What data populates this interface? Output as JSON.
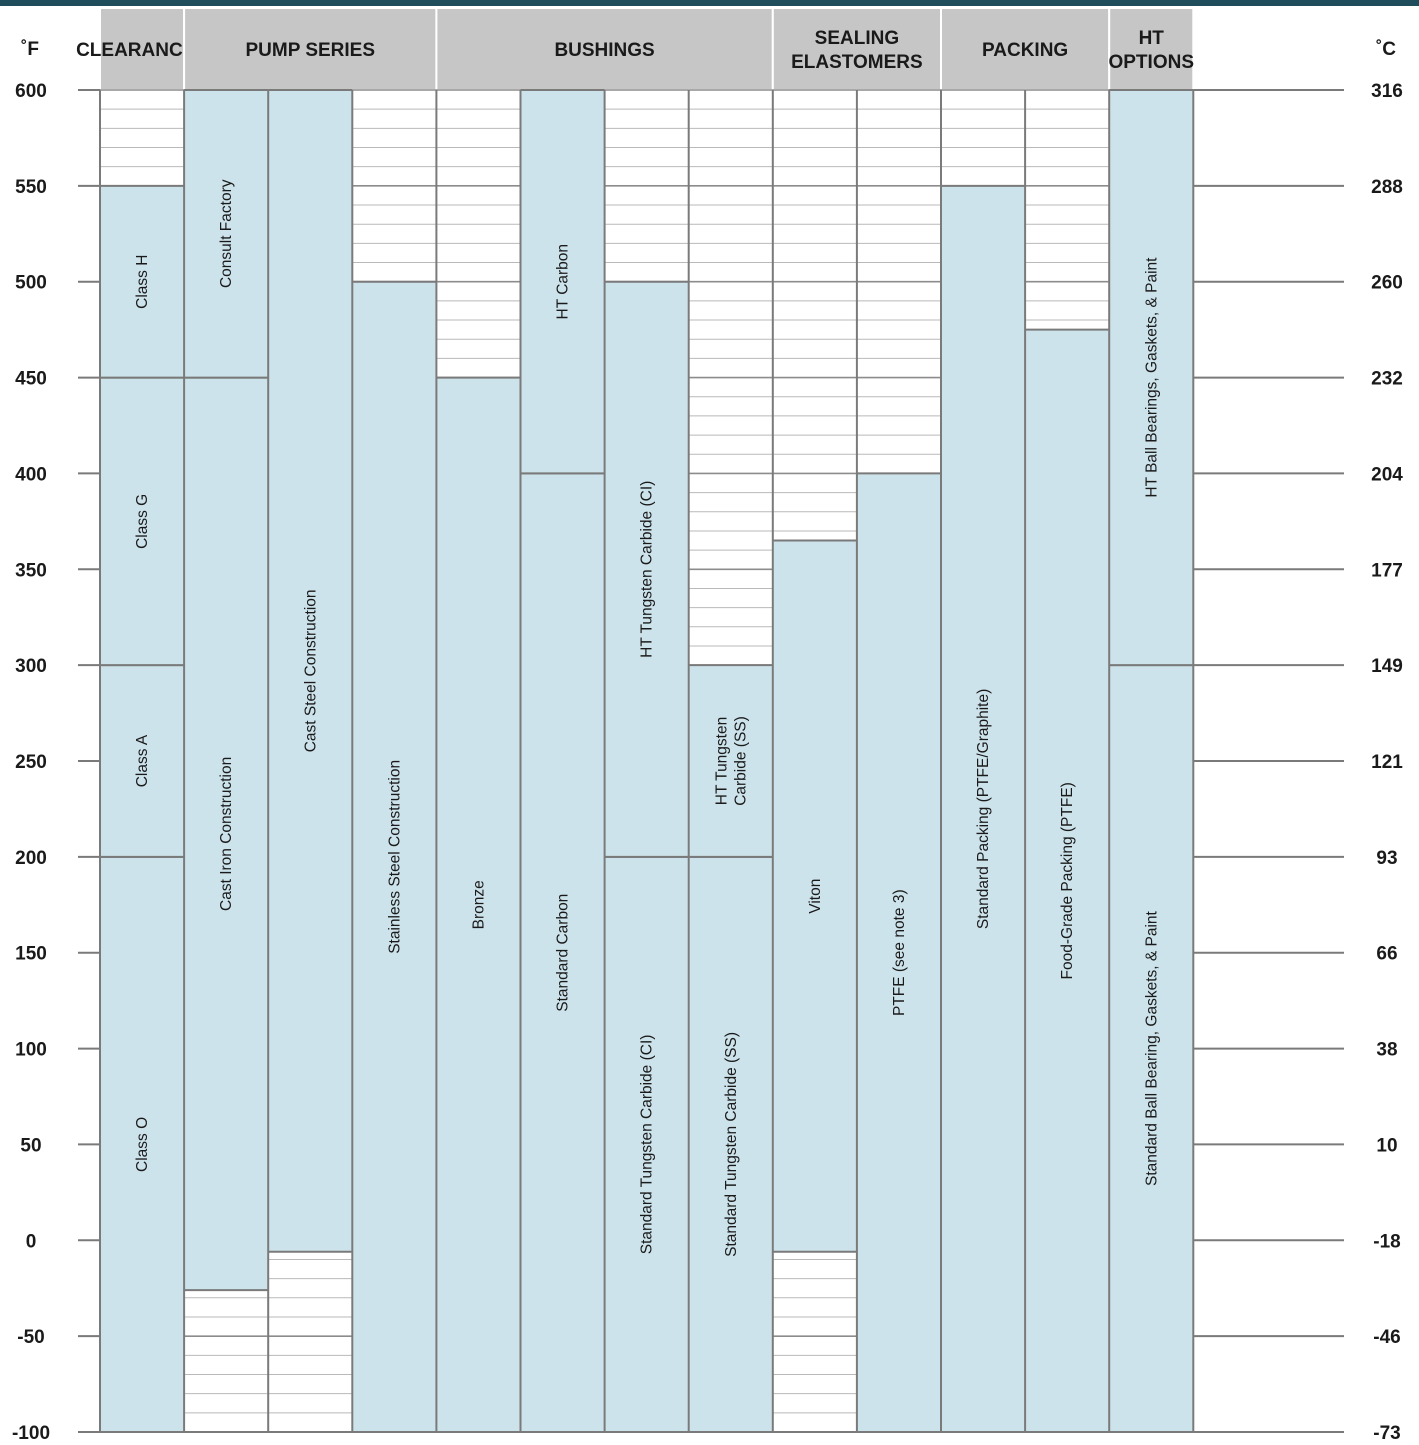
{
  "colors": {
    "header_bg": "#c6c6c6",
    "bar_fill": "#cde3eb",
    "grid_line": "#999999",
    "top_bar": "#1f4d5c",
    "text": "#1a1a1a"
  },
  "axis": {
    "left_unit": "˚F",
    "right_unit": "˚C",
    "fahrenheit_ticks": [
      "600",
      "550",
      "500",
      "450",
      "400",
      "350",
      "300",
      "250",
      "200",
      "150",
      "100",
      "50",
      "0",
      "-50",
      "-100"
    ],
    "celsius_ticks": [
      "316",
      "288",
      "260",
      "232",
      "204",
      "177",
      "149",
      "121",
      "93",
      "66",
      "38",
      "10",
      "-18",
      "-46",
      "-73"
    ]
  },
  "chart_data": {
    "type": "bar",
    "orientation": "range (floating vertical bars)",
    "ylim": [
      -100,
      600
    ],
    "y_unit": "°F",
    "y2_unit": "°C",
    "groups": [
      {
        "label": "CLEARANCES",
        "columns": [
          0
        ]
      },
      {
        "label": "PUMP SERIES",
        "columns": [
          1,
          2,
          3
        ]
      },
      {
        "label": "BUSHINGS",
        "columns": [
          4,
          5,
          6,
          7
        ]
      },
      {
        "label": "SEALING ELASTOMERS",
        "columns": [
          8,
          9
        ]
      },
      {
        "label": "PACKING",
        "columns": [
          10,
          11
        ]
      },
      {
        "label": "HT OPTIONS",
        "columns": [
          12
        ]
      }
    ],
    "bars": [
      {
        "column": 0,
        "label": "Class O",
        "low": -100,
        "high": 200
      },
      {
        "column": 0,
        "label": "Class A",
        "low": 200,
        "high": 300
      },
      {
        "column": 0,
        "label": "Class G",
        "low": 300,
        "high": 450
      },
      {
        "column": 0,
        "label": "Class H",
        "low": 450,
        "high": 550
      },
      {
        "column": 1,
        "label": "Cast Iron Construction",
        "low": -26,
        "high": 450
      },
      {
        "column": 1,
        "label": "Consult Factory",
        "low": 450,
        "high": 600
      },
      {
        "column": 2,
        "label": "Cast Steel Construction",
        "low": -6,
        "high": 600
      },
      {
        "column": 3,
        "label": "Stainless Steel Construction",
        "low": -100,
        "high": 500
      },
      {
        "column": 4,
        "label": "Bronze",
        "low": -100,
        "high": 450
      },
      {
        "column": 5,
        "label": "Standard Carbon",
        "low": -100,
        "high": 400
      },
      {
        "column": 5,
        "label": "HT Carbon",
        "low": 400,
        "high": 600
      },
      {
        "column": 6,
        "label": "Standard Tungsten Carbide (CI)",
        "low": -100,
        "high": 200
      },
      {
        "column": 6,
        "label": "HT Tungsten Carbide (CI)",
        "low": 200,
        "high": 500
      },
      {
        "column": 7,
        "label": "Standard Tungsten Carbide (SS)",
        "low": -100,
        "high": 200
      },
      {
        "column": 7,
        "label": "HT Tungsten Carbide (SS)",
        "low": 200,
        "high": 300
      },
      {
        "column": 8,
        "label": "Viton",
        "low": -6,
        "high": 365
      },
      {
        "column": 9,
        "label": "PTFE (see note 3)",
        "low": -100,
        "high": 400
      },
      {
        "column": 10,
        "label": "Standard Packing (PTFE/Graphite)",
        "low": -100,
        "high": 550
      },
      {
        "column": 11,
        "label": "Food-Grade Packing (PTFE)",
        "low": -100,
        "high": 475
      },
      {
        "column": 12,
        "label": "Standard Ball Bearing, Gaskets, & Paint",
        "low": -100,
        "high": 300
      },
      {
        "column": 12,
        "label": "HT Ball Bearings, Gaskets, & Paint",
        "low": 300,
        "high": 600
      }
    ]
  }
}
